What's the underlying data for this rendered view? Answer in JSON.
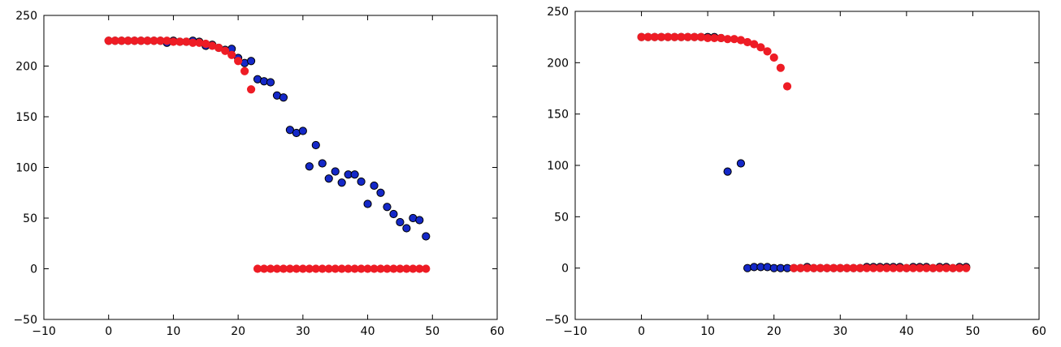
{
  "chart_data": [
    {
      "type": "scatter",
      "xlim": [
        -10,
        60
      ],
      "ylim": [
        -50,
        250
      ],
      "xticks": [
        -10,
        0,
        10,
        20,
        30,
        40,
        50,
        60
      ],
      "yticks": [
        -50,
        0,
        50,
        100,
        150,
        200,
        250
      ],
      "xtick_labels": [
        "−10",
        "0",
        "10",
        "20",
        "30",
        "40",
        "50",
        "60"
      ],
      "ytick_labels": [
        "−50",
        "0",
        "50",
        "100",
        "150",
        "200",
        "250"
      ],
      "grid": false,
      "legend": "none",
      "series": [
        {
          "color": "#1428c8",
          "x": [
            0,
            1,
            2,
            3,
            4,
            5,
            6,
            7,
            8,
            9,
            10,
            11,
            12,
            13,
            14,
            15,
            16,
            17,
            18,
            19,
            20,
            21,
            22,
            23,
            24,
            25,
            26,
            27,
            28,
            29,
            30,
            31,
            32,
            33,
            34,
            35,
            36,
            37,
            38,
            39,
            40,
            41,
            42,
            43,
            44,
            45,
            46,
            47,
            48,
            49
          ],
          "y": [
            225,
            225,
            225,
            225,
            225,
            225,
            225,
            225,
            225,
            223,
            225,
            224,
            224,
            225,
            224,
            220,
            221,
            218,
            216,
            217,
            208,
            203,
            205,
            187,
            185,
            184,
            171,
            169,
            137,
            134,
            136,
            101,
            122,
            104,
            89,
            96,
            85,
            93,
            93,
            86,
            64,
            82,
            75,
            61,
            54,
            46,
            40,
            50,
            48,
            32
          ]
        },
        {
          "color": "#ee1c25",
          "x": [
            0,
            1,
            2,
            3,
            4,
            5,
            6,
            7,
            8,
            9,
            10,
            11,
            12,
            13,
            14,
            15,
            16,
            17,
            18,
            19,
            20,
            21,
            22,
            23,
            24,
            25,
            26,
            27,
            28,
            29,
            30,
            31,
            32,
            33,
            34,
            35,
            36,
            37,
            38,
            39,
            40,
            41,
            42,
            43,
            44,
            45,
            46,
            47,
            48,
            49
          ],
          "y": [
            225,
            225,
            225,
            225,
            225,
            225,
            225,
            225,
            225,
            225,
            224,
            224,
            224,
            223,
            223,
            222,
            220,
            218,
            215,
            211,
            205,
            195,
            177,
            0,
            0,
            0,
            0,
            0,
            0,
            0,
            0,
            0,
            0,
            0,
            0,
            0,
            0,
            0,
            0,
            0,
            0,
            0,
            0,
            0,
            0,
            0,
            0,
            0,
            0,
            0
          ]
        }
      ]
    },
    {
      "type": "scatter",
      "xlim": [
        -10,
        60
      ],
      "ylim": [
        -50,
        250
      ],
      "xticks": [
        -10,
        0,
        10,
        20,
        30,
        40,
        50,
        60
      ],
      "yticks": [
        -50,
        0,
        50,
        100,
        150,
        200,
        250
      ],
      "xtick_labels": [
        "−10",
        "0",
        "10",
        "20",
        "30",
        "40",
        "50",
        "60"
      ],
      "ytick_labels": [
        "−50",
        "0",
        "50",
        "100",
        "150",
        "200",
        "250"
      ],
      "grid": false,
      "legend": "none",
      "series": [
        {
          "color": "#1428c8",
          "x": [
            0,
            1,
            2,
            3,
            4,
            5,
            6,
            7,
            8,
            9,
            10,
            11,
            12,
            13,
            15,
            16,
            17,
            18,
            19,
            20,
            21,
            22,
            23,
            24,
            25,
            26,
            27,
            28,
            29,
            30,
            31,
            32,
            33,
            34,
            35,
            36,
            37,
            38,
            39,
            40,
            41,
            42,
            43,
            44,
            45,
            46,
            47,
            48,
            49
          ],
          "y": [
            225,
            225,
            225,
            225,
            225,
            225,
            225,
            225,
            225,
            225,
            225,
            225,
            224,
            94,
            102,
            0,
            1,
            1,
            1,
            0,
            0,
            0,
            0,
            0,
            1,
            0,
            0,
            0,
            0,
            0,
            0,
            0,
            0,
            1,
            1,
            1,
            1,
            1,
            1,
            0,
            1,
            1,
            1,
            0,
            1,
            1,
            0,
            1,
            1
          ]
        },
        {
          "color": "#ee1c25",
          "x": [
            0,
            1,
            2,
            3,
            4,
            5,
            6,
            7,
            8,
            9,
            10,
            11,
            12,
            13,
            14,
            15,
            16,
            17,
            18,
            19,
            20,
            21,
            22,
            23,
            24,
            25,
            26,
            27,
            28,
            29,
            30,
            31,
            32,
            33,
            34,
            35,
            36,
            37,
            38,
            39,
            40,
            41,
            42,
            43,
            44,
            45,
            46,
            47,
            48,
            49
          ],
          "y": [
            225,
            225,
            225,
            225,
            225,
            225,
            225,
            225,
            225,
            225,
            224,
            224,
            224,
            223,
            223,
            222,
            220,
            218,
            215,
            211,
            205,
            195,
            177,
            0,
            0,
            0,
            0,
            0,
            0,
            0,
            0,
            0,
            0,
            0,
            0,
            0,
            0,
            0,
            0,
            0,
            0,
            0,
            0,
            0,
            0,
            0,
            0,
            0,
            0,
            0
          ]
        }
      ]
    }
  ]
}
